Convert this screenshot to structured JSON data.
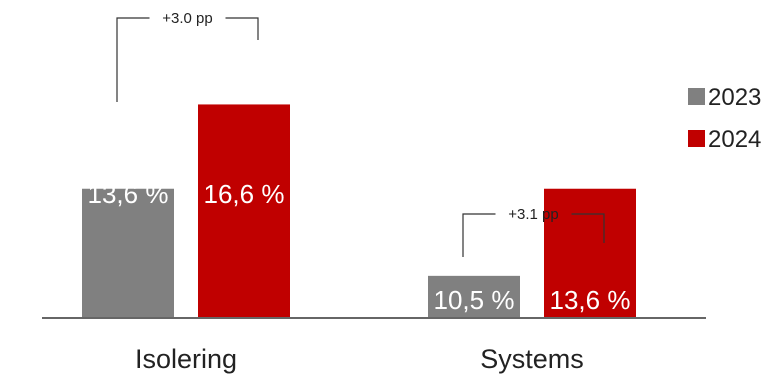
{
  "chart_data": {
    "type": "bar",
    "categories": [
      "Isolering",
      "Systems"
    ],
    "series": [
      {
        "name": "2023",
        "values": [
          13.6,
          10.5
        ],
        "labels": [
          "13,6 %",
          "10,5 %"
        ],
        "color": "#808080"
      },
      {
        "name": "2024",
        "values": [
          16.6,
          13.6
        ],
        "labels": [
          "16,6 %",
          "13,6 %"
        ],
        "color": "#c00000"
      }
    ],
    "annotations": [
      "+3.0 pp",
      "+3.1 pp"
    ],
    "ylim": [
      9.0,
      18.0
    ],
    "legend": "right",
    "grid": false,
    "axis_color": "#666666"
  }
}
